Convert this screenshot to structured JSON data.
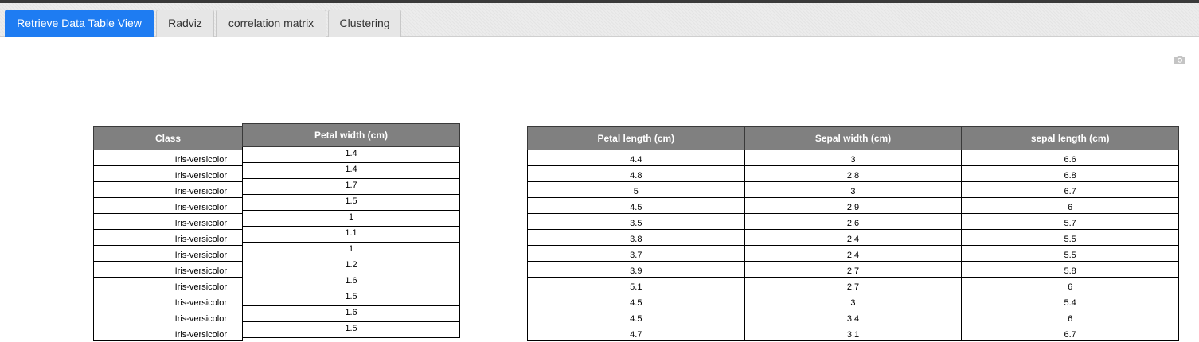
{
  "tabs": [
    {
      "label": "Retrieve Data Table View",
      "active": true
    },
    {
      "label": "Radviz",
      "active": false
    },
    {
      "label": "correlation matrix",
      "active": false
    },
    {
      "label": "Clustering",
      "active": false
    }
  ],
  "colors": {
    "active_tab": "#1e7cf2",
    "header_bg": "#808080",
    "header_text": "#ffffff"
  },
  "toolbar": {
    "snapshot_icon": "camera-icon"
  },
  "class_table": {
    "header": "Class",
    "rows": [
      "Iris-versicolor",
      "Iris-versicolor",
      "Iris-versicolor",
      "Iris-versicolor",
      "Iris-versicolor",
      "Iris-versicolor",
      "Iris-versicolor",
      "Iris-versicolor",
      "Iris-versicolor",
      "Iris-versicolor",
      "Iris-versicolor",
      "Iris-versicolor"
    ]
  },
  "petal_width_table": {
    "header": "Petal width (cm)",
    "rows": [
      "1.4",
      "1.4",
      "1.7",
      "1.5",
      "1",
      "1.1",
      "1",
      "1.2",
      "1.6",
      "1.5",
      "1.6",
      "1.5"
    ]
  },
  "right_table": {
    "headers": [
      "Petal length (cm)",
      "Sepal width (cm)",
      "sepal length (cm)"
    ],
    "rows": [
      [
        "4.4",
        "3",
        "6.6"
      ],
      [
        "4.8",
        "2.8",
        "6.8"
      ],
      [
        "5",
        "3",
        "6.7"
      ],
      [
        "4.5",
        "2.9",
        "6"
      ],
      [
        "3.5",
        "2.6",
        "5.7"
      ],
      [
        "3.8",
        "2.4",
        "5.5"
      ],
      [
        "3.7",
        "2.4",
        "5.5"
      ],
      [
        "3.9",
        "2.7",
        "5.8"
      ],
      [
        "5.1",
        "2.7",
        "6"
      ],
      [
        "4.5",
        "3",
        "5.4"
      ],
      [
        "4.5",
        "3.4",
        "6"
      ],
      [
        "4.7",
        "3.1",
        "6.7"
      ]
    ]
  }
}
